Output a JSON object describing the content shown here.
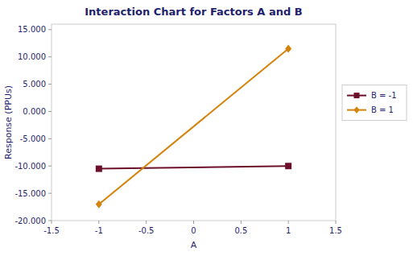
{
  "chart_data": {
    "type": "line",
    "title": "Interaction Chart for Factors A and B",
    "x_label": "A",
    "y_label": "Response (PPUs)",
    "x": [
      -1,
      1
    ],
    "xlim": [
      -1.5,
      1.5
    ],
    "xticks": [
      -1.5,
      -1,
      -0.5,
      0,
      0.5,
      1,
      1.5
    ],
    "ylim": [
      -20000,
      16000
    ],
    "yticks": [
      {
        "value": -20000,
        "label": "-20.000"
      },
      {
        "value": -15000,
        "label": "-15.000"
      },
      {
        "value": -10000,
        "label": "-10.000"
      },
      {
        "value": -5000,
        "label": "-5.000"
      },
      {
        "value": 0,
        "label": "0.000"
      },
      {
        "value": 5000,
        "label": "5.000"
      },
      {
        "value": 10000,
        "label": "10.000"
      },
      {
        "value": 15000,
        "label": "15.000"
      }
    ],
    "series": [
      {
        "name": "B = -1",
        "color": "#6B0F2A",
        "marker": "square",
        "values": [
          -10500,
          -10000
        ]
      },
      {
        "name": "B = 1",
        "color": "#D4820A",
        "marker": "diamond",
        "values": [
          -17000,
          11500
        ]
      }
    ],
    "grid": false,
    "legend": "right"
  }
}
